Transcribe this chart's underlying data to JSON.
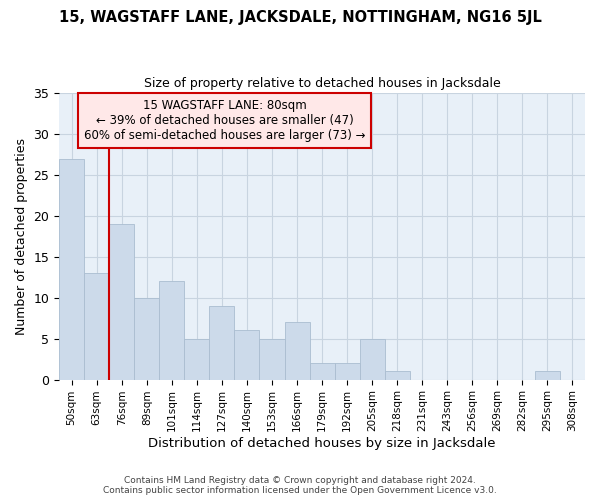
{
  "title": "15, WAGSTAFF LANE, JACKSDALE, NOTTINGHAM, NG16 5JL",
  "subtitle": "Size of property relative to detached houses in Jacksdale",
  "xlabel": "Distribution of detached houses by size in Jacksdale",
  "ylabel": "Number of detached properties",
  "bar_labels": [
    "50sqm",
    "63sqm",
    "76sqm",
    "89sqm",
    "101sqm",
    "114sqm",
    "127sqm",
    "140sqm",
    "153sqm",
    "166sqm",
    "179sqm",
    "192sqm",
    "205sqm",
    "218sqm",
    "231sqm",
    "243sqm",
    "256sqm",
    "269sqm",
    "282sqm",
    "295sqm",
    "308sqm"
  ],
  "bar_values": [
    27,
    13,
    19,
    10,
    12,
    5,
    9,
    6,
    5,
    7,
    2,
    2,
    5,
    1,
    0,
    0,
    0,
    0,
    0,
    1,
    0
  ],
  "bar_color": "#ccdaea",
  "bar_edgecolor": "#aabdd0",
  "ylim": [
    0,
    35
  ],
  "yticks": [
    0,
    5,
    10,
    15,
    20,
    25,
    30,
    35
  ],
  "grid_color": "#c8d4e0",
  "background_color": "#e8f0f8",
  "footer": "Contains HM Land Registry data © Crown copyright and database right 2024.\nContains public sector information licensed under the Open Government Licence v3.0.",
  "red_line_color": "#cc0000",
  "annotation_text": "15 WAGSTAFF LANE: 80sqm\n← 39% of detached houses are smaller (47)\n60% of semi-detached houses are larger (73) →",
  "annotation_box_color": "#ffe8e8",
  "annotation_border_color": "#cc0000",
  "red_line_index": 2
}
